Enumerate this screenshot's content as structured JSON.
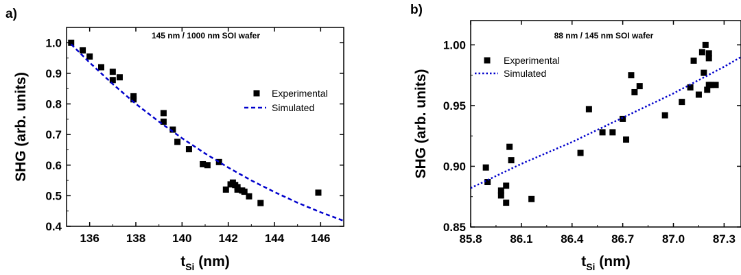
{
  "chart_data": [
    {
      "panel_label": "a)",
      "type": "scatter",
      "title": "145 nm / 1000 nm SOI wafer",
      "xlabel_main": "t",
      "xlabel_sub": "Si",
      "xlabel_unit": " (nm)",
      "ylabel": "SHG (arb. units)",
      "xlim": [
        135,
        147
      ],
      "ylim": [
        0.4,
        1.05
      ],
      "xticks": [
        136,
        138,
        140,
        142,
        144,
        146
      ],
      "yticks": [
        0.4,
        0.5,
        0.6,
        0.7,
        0.8,
        0.9,
        1.0
      ],
      "xtick_labels": [
        "136",
        "138",
        "140",
        "142",
        "144",
        "146"
      ],
      "ytick_labels": [
        "0.4",
        "0.5",
        "0.6",
        "0.7",
        "0.8",
        "0.9",
        "1.0"
      ],
      "legend_position": "right",
      "series": [
        {
          "name": "Experimental",
          "kind": "markers",
          "color": "#000000",
          "x": [
            135.2,
            135.7,
            136.0,
            136.5,
            137.0,
            137.0,
            137.3,
            137.9,
            137.9,
            139.2,
            139.2,
            139.6,
            139.8,
            140.3,
            140.9,
            141.1,
            141.6,
            141.9,
            142.1,
            142.2,
            142.3,
            142.4,
            142.4,
            142.6,
            142.7,
            142.9,
            143.4,
            145.9
          ],
          "y": [
            1.0,
            0.975,
            0.955,
            0.92,
            0.905,
            0.878,
            0.887,
            0.825,
            0.815,
            0.77,
            0.742,
            0.716,
            0.676,
            0.652,
            0.603,
            0.6,
            0.61,
            0.52,
            0.537,
            0.543,
            0.535,
            0.528,
            0.52,
            0.517,
            0.513,
            0.498,
            0.476,
            0.51
          ]
        },
        {
          "name": "Simulated",
          "kind": "dashed-line",
          "color": "#0000cc",
          "x": [
            135.2,
            136,
            137,
            138,
            139,
            140,
            141,
            142,
            143,
            144,
            145,
            146,
            147
          ],
          "y": [
            0.995,
            0.935,
            0.865,
            0.8,
            0.742,
            0.688,
            0.638,
            0.592,
            0.55,
            0.512,
            0.477,
            0.446,
            0.418
          ]
        }
      ]
    },
    {
      "panel_label": "b)",
      "type": "scatter",
      "title": "88 nm / 145 nm SOI wafer",
      "xlabel_main": "t",
      "xlabel_sub": "Si",
      "xlabel_unit": " (nm)",
      "ylabel": "SHG (arb. units)",
      "xlim": [
        85.8,
        87.4
      ],
      "ylim": [
        0.85,
        1.02
      ],
      "xticks": [
        85.8,
        86.1,
        86.4,
        86.7,
        87.0,
        87.3
      ],
      "yticks": [
        0.85,
        0.9,
        0.95,
        1.0
      ],
      "xtick_labels": [
        "85.8",
        "86.1",
        "86.4",
        "86.7",
        "87.0",
        "87.3"
      ],
      "ytick_labels": [
        "0.85",
        "0.90",
        "0.95",
        "1.00"
      ],
      "legend_position": "top-left",
      "series": [
        {
          "name": "Experimental",
          "kind": "markers",
          "color": "#000000",
          "x": [
            85.89,
            85.9,
            85.98,
            85.98,
            86.01,
            86.01,
            86.03,
            86.04,
            86.16,
            86.45,
            86.5,
            86.58,
            86.64,
            86.7,
            86.72,
            86.75,
            86.77,
            86.8,
            86.95,
            87.05,
            87.1,
            87.12,
            87.15,
            87.17,
            87.18,
            87.19,
            87.2,
            87.21,
            87.21,
            87.21,
            87.22,
            87.25
          ],
          "y": [
            0.899,
            0.887,
            0.88,
            0.876,
            0.884,
            0.87,
            0.916,
            0.905,
            0.873,
            0.911,
            0.947,
            0.928,
            0.928,
            0.939,
            0.922,
            0.975,
            0.961,
            0.966,
            0.942,
            0.953,
            0.965,
            0.987,
            0.959,
            0.994,
            0.977,
            1.0,
            0.963,
            0.967,
            0.993,
            0.989,
            0.967,
            0.967
          ]
        },
        {
          "name": "Simulated",
          "kind": "dotted-line",
          "color": "#0000cc",
          "x": [
            85.8,
            86.1,
            86.4,
            86.7,
            87.0,
            87.3,
            87.4
          ],
          "y": [
            0.882,
            0.902,
            0.92,
            0.94,
            0.96,
            0.982,
            0.99
          ]
        }
      ]
    }
  ]
}
